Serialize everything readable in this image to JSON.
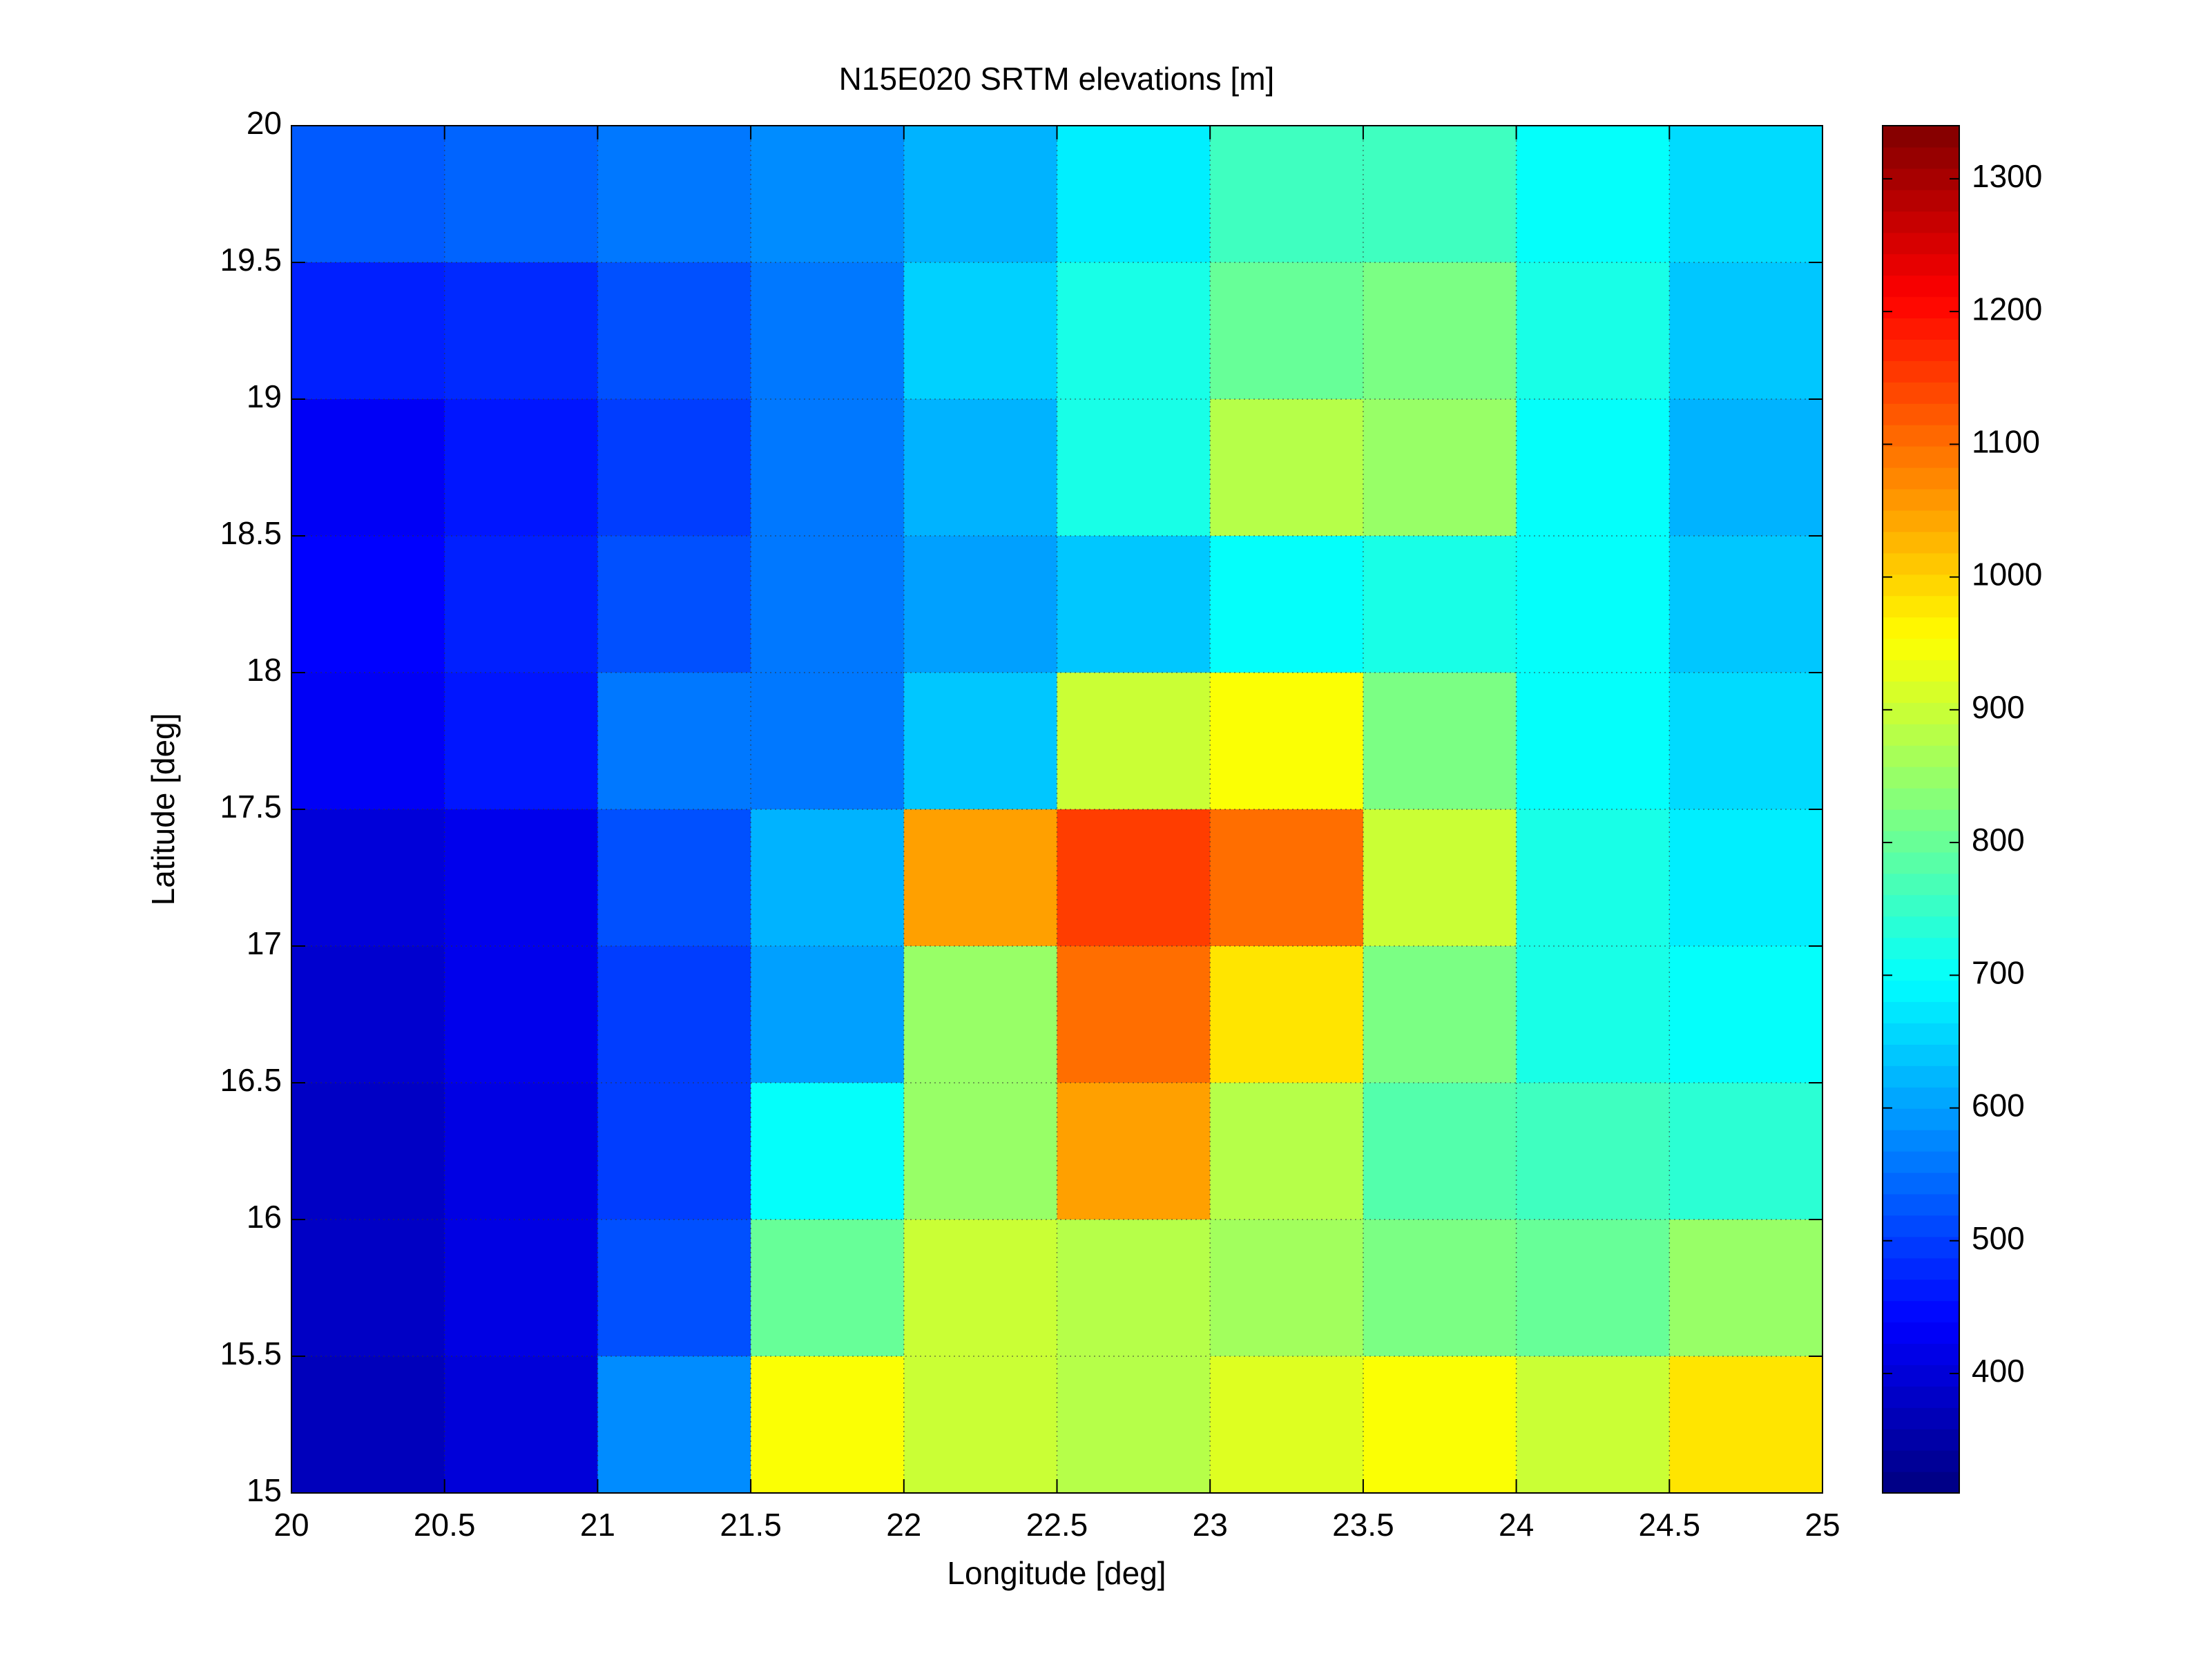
{
  "chart_data": {
    "type": "heatmap",
    "title": "N15E020 SRTM elevations [m]",
    "xlabel": "Longitude [deg]",
    "ylabel": "Latitude [deg]",
    "xlim": [
      20,
      25
    ],
    "ylim": [
      15,
      20
    ],
    "xticks": [
      20,
      20.5,
      21,
      21.5,
      22,
      22.5,
      23,
      23.5,
      24,
      24.5,
      25
    ],
    "yticks": [
      15,
      15.5,
      16,
      16.5,
      17,
      17.5,
      18,
      18.5,
      19,
      19.5,
      20
    ],
    "x": [
      20,
      20.5,
      21,
      21.5,
      22,
      22.5,
      23,
      23.5,
      24,
      24.5,
      25
    ],
    "y": [
      20,
      19.5,
      19,
      18.5,
      18,
      17.5,
      17,
      16.5,
      16,
      15.5,
      15
    ],
    "values": [
      [
        530,
        540,
        560,
        580,
        620,
        680,
        760,
        760,
        700,
        660
      ],
      [
        470,
        480,
        520,
        560,
        650,
        720,
        800,
        820,
        720,
        640
      ],
      [
        430,
        460,
        500,
        560,
        620,
        720,
        880,
        850,
        700,
        620
      ],
      [
        440,
        470,
        520,
        560,
        600,
        640,
        700,
        720,
        700,
        640
      ],
      [
        430,
        460,
        560,
        560,
        640,
        900,
        950,
        820,
        700,
        660
      ],
      [
        400,
        420,
        520,
        620,
        1050,
        1150,
        1100,
        900,
        720,
        680
      ],
      [
        390,
        420,
        500,
        600,
        850,
        1100,
        980,
        820,
        720,
        700
      ],
      [
        380,
        410,
        500,
        700,
        850,
        1050,
        880,
        780,
        760,
        740
      ],
      [
        380,
        410,
        520,
        800,
        900,
        880,
        860,
        820,
        800,
        850
      ],
      [
        370,
        400,
        580,
        950,
        900,
        880,
        920,
        950,
        900,
        980
      ]
    ],
    "colormap": "jet",
    "clim": [
      310,
      1340
    ],
    "cticks": [
      400,
      500,
      600,
      700,
      800,
      900,
      1000,
      1100,
      1200,
      1300
    ],
    "grid": true
  }
}
